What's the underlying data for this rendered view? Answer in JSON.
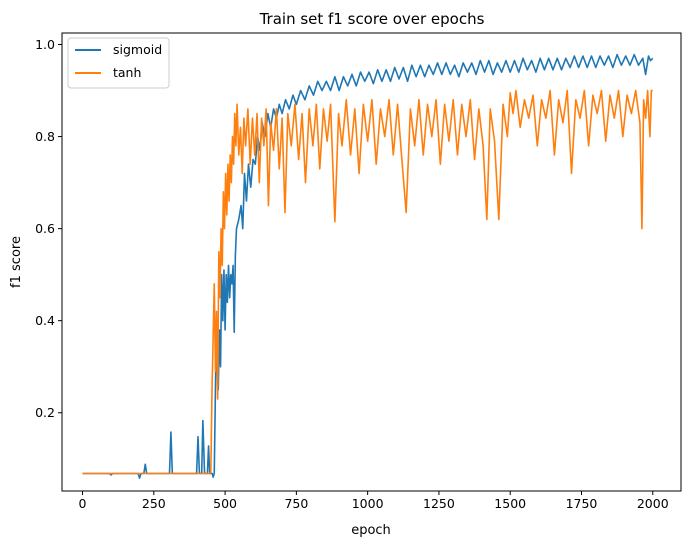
{
  "chart_data": {
    "type": "line",
    "title": "Train set f1 score over epochs",
    "xlabel": "epoch",
    "ylabel": "f1 score",
    "xlim": [
      -72,
      2099
    ],
    "ylim": [
      0.03,
      1.025
    ],
    "xticks": [
      0,
      250,
      500,
      750,
      1000,
      1250,
      1500,
      1750,
      2000
    ],
    "yticks": [
      0.2,
      0.4,
      0.6,
      0.8,
      1.0
    ],
    "ytick_labels": [
      "0.2",
      "0.4",
      "0.6",
      "0.8",
      "1.0"
    ],
    "grid": false,
    "legend_position": "top-left",
    "series": [
      {
        "name": "sigmoid",
        "color": "#1f77b4",
        "points": [
          [
            0,
            0.068
          ],
          [
            95,
            0.068
          ],
          [
            100,
            0.065
          ],
          [
            105,
            0.068
          ],
          [
            195,
            0.068
          ],
          [
            200,
            0.058
          ],
          [
            205,
            0.068
          ],
          [
            215,
            0.068
          ],
          [
            220,
            0.088
          ],
          [
            225,
            0.068
          ],
          [
            305,
            0.068
          ],
          [
            310,
            0.158
          ],
          [
            315,
            0.068
          ],
          [
            400,
            0.068
          ],
          [
            405,
            0.148
          ],
          [
            410,
            0.068
          ],
          [
            418,
            0.068
          ],
          [
            422,
            0.183
          ],
          [
            428,
            0.068
          ],
          [
            438,
            0.068
          ],
          [
            442,
            0.128
          ],
          [
            446,
            0.068
          ],
          [
            455,
            0.068
          ],
          [
            458,
            0.06
          ],
          [
            462,
            0.068
          ],
          [
            468,
            0.335
          ],
          [
            472,
            0.32
          ],
          [
            476,
            0.25
          ],
          [
            480,
            0.38
          ],
          [
            484,
            0.3
          ],
          [
            488,
            0.5
          ],
          [
            492,
            0.4
          ],
          [
            496,
            0.51
          ],
          [
            500,
            0.38
          ],
          [
            504,
            0.5
          ],
          [
            508,
            0.44
          ],
          [
            512,
            0.52
          ],
          [
            516,
            0.45
          ],
          [
            520,
            0.5
          ],
          [
            524,
            0.48
          ],
          [
            528,
            0.52
          ],
          [
            532,
            0.375
          ],
          [
            536,
            0.54
          ],
          [
            540,
            0.6
          ],
          [
            548,
            0.62
          ],
          [
            556,
            0.65
          ],
          [
            562,
            0.6
          ],
          [
            568,
            0.72
          ],
          [
            575,
            0.66
          ],
          [
            582,
            0.74
          ],
          [
            590,
            0.69
          ],
          [
            598,
            0.75
          ],
          [
            606,
            0.74
          ],
          [
            614,
            0.8
          ],
          [
            622,
            0.77
          ],
          [
            630,
            0.83
          ],
          [
            640,
            0.8
          ],
          [
            650,
            0.85
          ],
          [
            660,
            0.82
          ],
          [
            670,
            0.86
          ],
          [
            680,
            0.84
          ],
          [
            690,
            0.87
          ],
          [
            700,
            0.85
          ],
          [
            712,
            0.88
          ],
          [
            725,
            0.86
          ],
          [
            738,
            0.89
          ],
          [
            750,
            0.87
          ],
          [
            765,
            0.9
          ],
          [
            780,
            0.88
          ],
          [
            795,
            0.91
          ],
          [
            810,
            0.89
          ],
          [
            825,
            0.92
          ],
          [
            840,
            0.9
          ],
          [
            855,
            0.92
          ],
          [
            870,
            0.9
          ],
          [
            885,
            0.93
          ],
          [
            900,
            0.9
          ],
          [
            915,
            0.93
          ],
          [
            930,
            0.91
          ],
          [
            945,
            0.935
          ],
          [
            960,
            0.91
          ],
          [
            975,
            0.94
          ],
          [
            990,
            0.92
          ],
          [
            1005,
            0.94
          ],
          [
            1020,
            0.915
          ],
          [
            1035,
            0.945
          ],
          [
            1050,
            0.92
          ],
          [
            1065,
            0.945
          ],
          [
            1080,
            0.92
          ],
          [
            1095,
            0.95
          ],
          [
            1110,
            0.925
          ],
          [
            1125,
            0.95
          ],
          [
            1140,
            0.92
          ],
          [
            1155,
            0.955
          ],
          [
            1170,
            0.93
          ],
          [
            1185,
            0.955
          ],
          [
            1200,
            0.93
          ],
          [
            1215,
            0.955
          ],
          [
            1230,
            0.935
          ],
          [
            1245,
            0.96
          ],
          [
            1260,
            0.935
          ],
          [
            1275,
            0.96
          ],
          [
            1290,
            0.935
          ],
          [
            1305,
            0.955
          ],
          [
            1320,
            0.93
          ],
          [
            1335,
            0.96
          ],
          [
            1350,
            0.94
          ],
          [
            1365,
            0.96
          ],
          [
            1380,
            0.935
          ],
          [
            1395,
            0.965
          ],
          [
            1410,
            0.94
          ],
          [
            1425,
            0.965
          ],
          [
            1440,
            0.935
          ],
          [
            1455,
            0.96
          ],
          [
            1470,
            0.94
          ],
          [
            1485,
            0.965
          ],
          [
            1500,
            0.94
          ],
          [
            1515,
            0.965
          ],
          [
            1530,
            0.94
          ],
          [
            1545,
            0.97
          ],
          [
            1560,
            0.945
          ],
          [
            1575,
            0.965
          ],
          [
            1590,
            0.94
          ],
          [
            1605,
            0.97
          ],
          [
            1620,
            0.945
          ],
          [
            1635,
            0.97
          ],
          [
            1650,
            0.945
          ],
          [
            1665,
            0.97
          ],
          [
            1680,
            0.945
          ],
          [
            1695,
            0.97
          ],
          [
            1710,
            0.95
          ],
          [
            1725,
            0.975
          ],
          [
            1740,
            0.95
          ],
          [
            1755,
            0.975
          ],
          [
            1770,
            0.95
          ],
          [
            1785,
            0.975
          ],
          [
            1800,
            0.95
          ],
          [
            1815,
            0.975
          ],
          [
            1830,
            0.955
          ],
          [
            1845,
            0.975
          ],
          [
            1860,
            0.95
          ],
          [
            1875,
            0.978
          ],
          [
            1890,
            0.955
          ],
          [
            1905,
            0.975
          ],
          [
            1920,
            0.955
          ],
          [
            1935,
            0.978
          ],
          [
            1950,
            0.955
          ],
          [
            1965,
            0.97
          ],
          [
            1975,
            0.935
          ],
          [
            1985,
            0.975
          ],
          [
            1992,
            0.965
          ],
          [
            2000,
            0.97
          ]
        ]
      },
      {
        "name": "tanh",
        "color": "#ff7f0e",
        "points": [
          [
            0,
            0.068
          ],
          [
            445,
            0.068
          ],
          [
            450,
            0.07
          ],
          [
            454,
            0.245
          ],
          [
            458,
            0.36
          ],
          [
            462,
            0.48
          ],
          [
            466,
            0.29
          ],
          [
            470,
            0.42
          ],
          [
            474,
            0.23
          ],
          [
            478,
            0.55
          ],
          [
            482,
            0.45
          ],
          [
            486,
            0.6
          ],
          [
            490,
            0.52
          ],
          [
            494,
            0.68
          ],
          [
            498,
            0.6
          ],
          [
            502,
            0.72
          ],
          [
            506,
            0.63
          ],
          [
            510,
            0.74
          ],
          [
            514,
            0.66
          ],
          [
            518,
            0.76
          ],
          [
            522,
            0.7
          ],
          [
            526,
            0.8
          ],
          [
            530,
            0.74
          ],
          [
            534,
            0.85
          ],
          [
            538,
            0.78
          ],
          [
            542,
            0.87
          ],
          [
            548,
            0.76
          ],
          [
            554,
            0.82
          ],
          [
            560,
            0.72
          ],
          [
            566,
            0.84
          ],
          [
            572,
            0.78
          ],
          [
            580,
            0.86
          ],
          [
            588,
            0.74
          ],
          [
            596,
            0.84
          ],
          [
            604,
            0.76
          ],
          [
            612,
            0.85
          ],
          [
            620,
            0.7
          ],
          [
            628,
            0.84
          ],
          [
            636,
            0.78
          ],
          [
            644,
            0.86
          ],
          [
            652,
            0.65
          ],
          [
            660,
            0.83
          ],
          [
            670,
            0.77
          ],
          [
            680,
            0.86
          ],
          [
            690,
            0.73
          ],
          [
            700,
            0.84
          ],
          [
            710,
            0.635
          ],
          [
            720,
            0.85
          ],
          [
            732,
            0.78
          ],
          [
            745,
            0.87
          ],
          [
            758,
            0.75
          ],
          [
            770,
            0.85
          ],
          [
            782,
            0.7
          ],
          [
            795,
            0.86
          ],
          [
            808,
            0.78
          ],
          [
            820,
            0.87
          ],
          [
            832,
            0.73
          ],
          [
            845,
            0.86
          ],
          [
            858,
            0.79
          ],
          [
            870,
            0.87
          ],
          [
            885,
            0.615
          ],
          [
            898,
            0.85
          ],
          [
            910,
            0.78
          ],
          [
            925,
            0.88
          ],
          [
            940,
            0.76
          ],
          [
            955,
            0.86
          ],
          [
            970,
            0.72
          ],
          [
            985,
            0.87
          ],
          [
            1000,
            0.79
          ],
          [
            1015,
            0.88
          ],
          [
            1030,
            0.74
          ],
          [
            1045,
            0.86
          ],
          [
            1060,
            0.8
          ],
          [
            1075,
            0.88
          ],
          [
            1090,
            0.76
          ],
          [
            1105,
            0.87
          ],
          [
            1120,
            0.75
          ],
          [
            1135,
            0.635
          ],
          [
            1150,
            0.86
          ],
          [
            1165,
            0.78
          ],
          [
            1180,
            0.88
          ],
          [
            1195,
            0.76
          ],
          [
            1210,
            0.87
          ],
          [
            1225,
            0.8
          ],
          [
            1240,
            0.88
          ],
          [
            1255,
            0.74
          ],
          [
            1270,
            0.87
          ],
          [
            1285,
            0.79
          ],
          [
            1300,
            0.88
          ],
          [
            1315,
            0.76
          ],
          [
            1330,
            0.87
          ],
          [
            1345,
            0.8
          ],
          [
            1360,
            0.88
          ],
          [
            1375,
            0.75
          ],
          [
            1390,
            0.86
          ],
          [
            1405,
            0.78
          ],
          [
            1418,
            0.62
          ],
          [
            1430,
            0.86
          ],
          [
            1445,
            0.79
          ],
          [
            1460,
            0.62
          ],
          [
            1475,
            0.87
          ],
          [
            1490,
            0.8
          ],
          [
            1500,
            0.895
          ],
          [
            1510,
            0.85
          ],
          [
            1520,
            0.9
          ],
          [
            1535,
            0.82
          ],
          [
            1550,
            0.88
          ],
          [
            1565,
            0.84
          ],
          [
            1580,
            0.89
          ],
          [
            1595,
            0.78
          ],
          [
            1610,
            0.88
          ],
          [
            1625,
            0.84
          ],
          [
            1640,
            0.9
          ],
          [
            1655,
            0.76
          ],
          [
            1670,
            0.88
          ],
          [
            1685,
            0.83
          ],
          [
            1700,
            0.9
          ],
          [
            1715,
            0.72
          ],
          [
            1730,
            0.88
          ],
          [
            1745,
            0.84
          ],
          [
            1760,
            0.9
          ],
          [
            1775,
            0.78
          ],
          [
            1790,
            0.89
          ],
          [
            1805,
            0.85
          ],
          [
            1820,
            0.9
          ],
          [
            1835,
            0.79
          ],
          [
            1850,
            0.89
          ],
          [
            1865,
            0.84
          ],
          [
            1880,
            0.9
          ],
          [
            1895,
            0.8
          ],
          [
            1910,
            0.89
          ],
          [
            1925,
            0.85
          ],
          [
            1940,
            0.9
          ],
          [
            1955,
            0.83
          ],
          [
            1962,
            0.6
          ],
          [
            1968,
            0.88
          ],
          [
            1975,
            0.84
          ],
          [
            1982,
            0.9
          ],
          [
            1990,
            0.8
          ],
          [
            1995,
            0.9
          ],
          [
            2000,
            0.9
          ]
        ]
      }
    ]
  }
}
